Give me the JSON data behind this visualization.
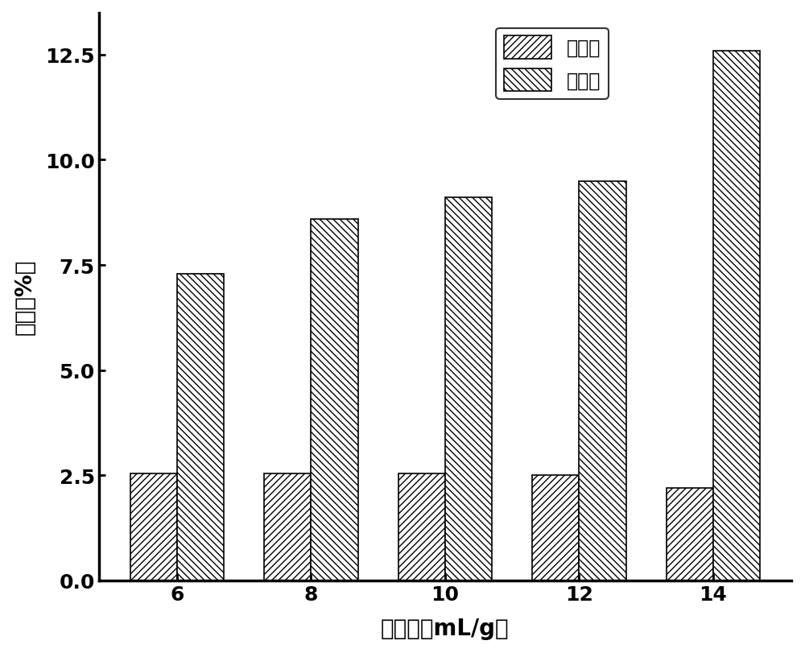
{
  "categories": [
    6,
    8,
    10,
    12,
    14
  ],
  "flavonoids": [
    2.55,
    2.55,
    2.55,
    2.5,
    2.2
  ],
  "saponins": [
    7.3,
    8.6,
    9.1,
    9.5,
    12.6
  ],
  "xlabel": "液固比（mL/g）",
  "ylabel": "得率（%）",
  "legend_flavonoids": "总黄酮",
  "legend_saponins": "总皋苷",
  "ylim": [
    0,
    13.5
  ],
  "yticks": [
    0.0,
    2.5,
    5.0,
    7.5,
    10.0,
    12.5
  ],
  "bar_width": 0.35,
  "background_color": "#ffffff",
  "hatch_flavonoids": "////",
  "hatch_saponins": "\\\\\\\\",
  "bar_edge_color": "#000000",
  "xlabel_fontsize": 20,
  "ylabel_fontsize": 20,
  "tick_fontsize": 18,
  "legend_fontsize": 17
}
